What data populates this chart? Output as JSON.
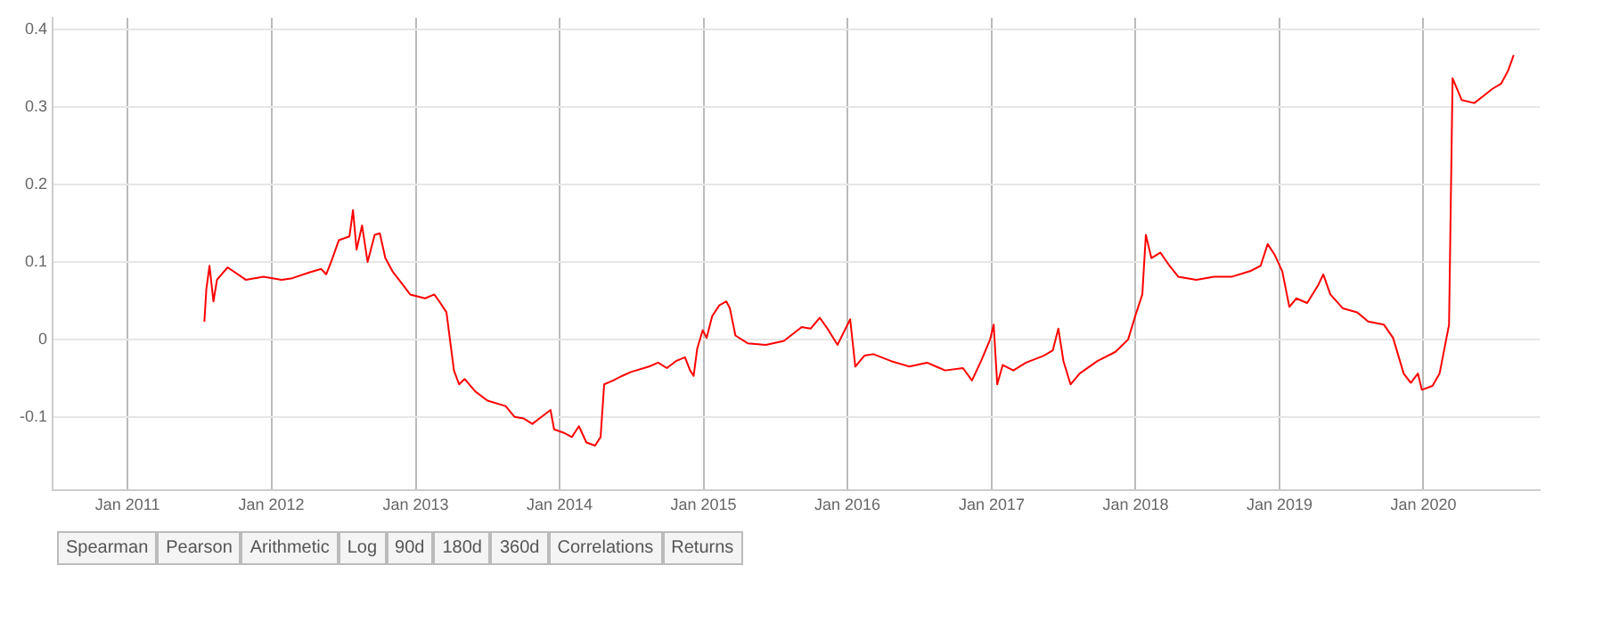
{
  "chart_data": {
    "type": "line",
    "xlim": [
      "2010-06-25",
      "2020-10-22"
    ],
    "xticks": [
      {
        "value": "2011-01-01",
        "label": "Jan 2011"
      },
      {
        "value": "2012-01-01",
        "label": "Jan 2012"
      },
      {
        "value": "2013-01-01",
        "label": "Jan 2013"
      },
      {
        "value": "2014-01-01",
        "label": "Jan 2014"
      },
      {
        "value": "2015-01-01",
        "label": "Jan 2015"
      },
      {
        "value": "2016-01-01",
        "label": "Jan 2016"
      },
      {
        "value": "2017-01-01",
        "label": "Jan 2017"
      },
      {
        "value": "2018-01-01",
        "label": "Jan 2018"
      },
      {
        "value": "2019-01-01",
        "label": "Jan 2019"
      },
      {
        "value": "2020-01-01",
        "label": "Jan 2020"
      }
    ],
    "ylim": [
      -0.195,
      0.415
    ],
    "yticks": [
      -0.1,
      0,
      0.1,
      0.2,
      0.3,
      0.4
    ],
    "grid": true,
    "marker": "none",
    "line_style": "solid",
    "annotations": [
      "Spearman",
      "Pearson",
      "Arithmetic",
      "Log",
      "90d",
      "180d",
      "360d",
      "Correlations",
      "Returns"
    ],
    "series": [
      {
        "color": "#ff0000",
        "x": [
          "2011-07-15",
          "2011-07-20",
          "2011-07-28",
          "2011-08-07",
          "2011-08-16",
          "2011-09-12",
          "2011-10-28",
          "2011-12-12",
          "2012-01-27",
          "2012-02-23",
          "2012-04-04",
          "2012-05-06",
          "2012-05-19",
          "2012-06-02",
          "2012-06-20",
          "2012-07-17",
          "2012-07-26",
          "2012-08-04",
          "2012-08-18",
          "2012-09-01",
          "2012-09-19",
          "2012-10-02",
          "2012-10-16",
          "2012-11-03",
          "2012-11-30",
          "2012-12-18",
          "2013-01-25",
          "2013-02-17",
          "2013-03-02",
          "2013-03-20",
          "2013-04-08",
          "2013-04-21",
          "2013-05-05",
          "2013-06-01",
          "2013-07-02",
          "2013-08-17",
          "2013-09-09",
          "2013-10-02",
          "2013-10-24",
          "2013-11-16",
          "2013-12-09",
          "2013-12-18",
          "2014-01-14",
          "2014-02-01",
          "2014-02-19",
          "2014-03-10",
          "2014-04-01",
          "2014-04-15",
          "2014-04-24",
          "2014-05-17",
          "2014-06-09",
          "2014-07-01",
          "2014-08-16",
          "2014-09-08",
          "2014-09-30",
          "2014-10-23",
          "2014-11-15",
          "2014-11-28",
          "2014-12-07",
          "2014-12-16",
          "2014-12-30",
          "2015-01-09",
          "2015-01-23",
          "2015-02-10",
          "2015-02-28",
          "2015-03-09",
          "2015-03-23",
          "2015-04-23",
          "2015-06-08",
          "2015-07-24",
          "2015-09-07",
          "2015-09-30",
          "2015-10-23",
          "2015-11-14",
          "2015-12-07",
          "2016-01-08",
          "2016-01-21",
          "2016-02-13",
          "2016-03-07",
          "2016-04-21",
          "2016-06-06",
          "2016-07-21",
          "2016-08-13",
          "2016-09-05",
          "2016-10-20",
          "2016-11-12",
          "2016-12-05",
          "2016-12-28",
          "2017-01-06",
          "2017-01-15",
          "2017-01-29",
          "2017-02-25",
          "2017-03-29",
          "2017-05-13",
          "2017-06-05",
          "2017-06-19",
          "2017-07-02",
          "2017-07-20",
          "2017-08-12",
          "2017-09-26",
          "2017-11-11",
          "2017-12-13",
          "2017-12-31",
          "2018-01-18",
          "2018-01-27",
          "2018-02-10",
          "2018-03-05",
          "2018-03-28",
          "2018-04-19",
          "2018-06-04",
          "2018-07-19",
          "2018-09-03",
          "2018-10-18",
          "2018-11-14",
          "2018-12-02",
          "2018-12-20",
          "2019-01-08",
          "2019-01-26",
          "2019-02-13",
          "2019-03-12",
          "2019-04-09",
          "2019-04-22",
          "2019-05-10",
          "2019-06-11",
          "2019-07-17",
          "2019-08-14",
          "2019-09-23",
          "2019-10-16",
          "2019-11-12",
          "2019-11-30",
          "2019-12-18",
          "2019-12-28",
          "2020-01-24",
          "2020-02-11",
          "2020-03-06",
          "2020-03-15",
          "2020-04-07",
          "2020-05-09",
          "2020-06-01",
          "2020-06-23",
          "2020-07-16",
          "2020-08-03",
          "2020-08-17"
        ],
        "values": [
          0.023,
          0.065,
          0.095,
          0.049,
          0.077,
          0.093,
          0.077,
          0.081,
          0.077,
          0.079,
          0.086,
          0.091,
          0.084,
          0.102,
          0.128,
          0.133,
          0.167,
          0.116,
          0.147,
          0.1,
          0.135,
          0.137,
          0.105,
          0.088,
          0.07,
          0.058,
          0.053,
          0.058,
          0.049,
          0.035,
          -0.04,
          -0.058,
          -0.051,
          -0.067,
          -0.079,
          -0.086,
          -0.1,
          -0.102,
          -0.109,
          -0.1,
          -0.091,
          -0.116,
          -0.121,
          -0.126,
          -0.112,
          -0.133,
          -0.137,
          -0.126,
          -0.058,
          -0.053,
          -0.047,
          -0.042,
          -0.035,
          -0.03,
          -0.037,
          -0.028,
          -0.023,
          -0.04,
          -0.047,
          -0.012,
          0.012,
          0.002,
          0.03,
          0.044,
          0.049,
          0.04,
          0.005,
          -0.005,
          -0.007,
          -0.002,
          0.016,
          0.014,
          0.028,
          0.012,
          -0.007,
          0.026,
          -0.035,
          -0.021,
          -0.019,
          -0.028,
          -0.035,
          -0.03,
          -0.035,
          -0.04,
          -0.037,
          -0.053,
          -0.028,
          0,
          0.019,
          -0.058,
          -0.033,
          -0.04,
          -0.03,
          -0.021,
          -0.014,
          0.014,
          -0.028,
          -0.058,
          -0.044,
          -0.028,
          -0.016,
          0,
          0.03,
          0.058,
          0.135,
          0.105,
          0.112,
          0.095,
          0.081,
          0.077,
          0.081,
          0.081,
          0.088,
          0.095,
          0.123,
          0.109,
          0.088,
          0.042,
          0.053,
          0.047,
          0.07,
          0.084,
          0.058,
          0.04,
          0.035,
          0.023,
          0.019,
          0.002,
          -0.044,
          -0.056,
          -0.044,
          -0.065,
          -0.06,
          -0.044,
          0.019,
          0.337,
          0.309,
          0.305,
          0.314,
          0.323,
          0.33,
          0.347,
          0.367
        ]
      }
    ]
  }
}
